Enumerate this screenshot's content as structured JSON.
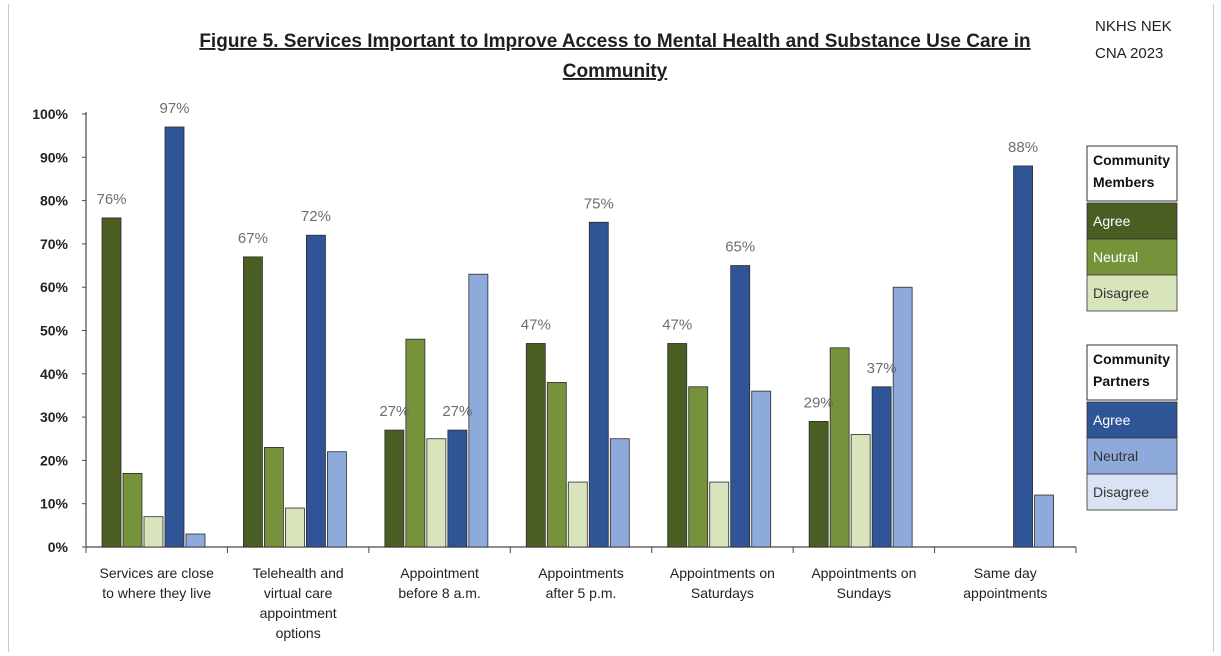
{
  "header": {
    "title_lines": [
      "Figure 5. Services Important to Improve Access to Mental Health and Substance Use Care in",
      "Community"
    ],
    "corner_note_lines": [
      "NKHS NEK",
      "CNA 2023"
    ]
  },
  "chart_data": {
    "type": "bar",
    "title": "Figure 5. Services Important to Improve Access to Mental Health and Substance Use Care in Community",
    "xlabel": "",
    "ylabel": "",
    "ylim": [
      0,
      100
    ],
    "yticks": [
      "0%",
      "10%",
      "20%",
      "30%",
      "40%",
      "50%",
      "60%",
      "70%",
      "80%",
      "90%",
      "100%"
    ],
    "grid": false,
    "legend_placement": "right",
    "categories": [
      [
        "Services are close",
        "to where they live"
      ],
      [
        "Telehealth and",
        "virtual care",
        "appointment",
        "options"
      ],
      [
        "Appointment",
        "before 8 a.m."
      ],
      [
        "Appointments",
        "after 5 p.m."
      ],
      [
        "Appointments on",
        "Saturdays"
      ],
      [
        "Appointments on",
        "Sundays"
      ],
      [
        "Same day",
        "appointments"
      ]
    ],
    "legend_groups": [
      {
        "title_lines": [
          "Community",
          "Members"
        ],
        "series": [
          0,
          1,
          2
        ]
      },
      {
        "title_lines": [
          "Community",
          "Partners"
        ],
        "series": [
          3,
          4,
          5
        ]
      }
    ],
    "series": [
      {
        "name": "Agree",
        "group": "Community Members",
        "color": "#4a5e23",
        "text_color": "#ffffff",
        "values": [
          76,
          67,
          27,
          47,
          47,
          29,
          null
        ],
        "labels": [
          "76%",
          "67%",
          "27%",
          "47%",
          "47%",
          "29%",
          ""
        ]
      },
      {
        "name": "Neutral",
        "group": "Community Members",
        "color": "#76933c",
        "text_color": "#ffffff",
        "values": [
          17,
          23,
          48,
          38,
          37,
          46,
          null
        ],
        "labels": [
          "",
          "",
          "",
          "",
          "",
          "",
          ""
        ]
      },
      {
        "name": "Disagree",
        "group": "Community Members",
        "color": "#d7e4bc",
        "text_color": "#333333",
        "values": [
          7,
          9,
          25,
          15,
          15,
          26,
          null
        ],
        "labels": [
          "",
          "",
          "",
          "",
          "",
          "",
          ""
        ]
      },
      {
        "name": "Agree",
        "group": "Community Partners",
        "color": "#2f5597",
        "text_color": "#ffffff",
        "values": [
          97,
          72,
          27,
          75,
          65,
          37,
          88
        ],
        "labels": [
          "97%",
          "72%",
          "27%",
          "75%",
          "65%",
          "37%",
          "88%"
        ]
      },
      {
        "name": "Neutral",
        "group": "Community Partners",
        "color": "#8eaadb",
        "text_color": "#333333",
        "values": [
          3,
          22,
          63,
          25,
          36,
          60,
          12
        ],
        "labels": [
          "",
          "",
          "",
          "",
          "",
          "",
          ""
        ]
      },
      {
        "name": "Disagree",
        "group": "Community Partners",
        "color": "#dae3f3",
        "text_color": "#333333",
        "values": [
          null,
          null,
          null,
          null,
          null,
          null,
          null
        ],
        "labels": [
          "",
          "",
          "",
          "",
          "",
          "",
          ""
        ]
      }
    ]
  }
}
